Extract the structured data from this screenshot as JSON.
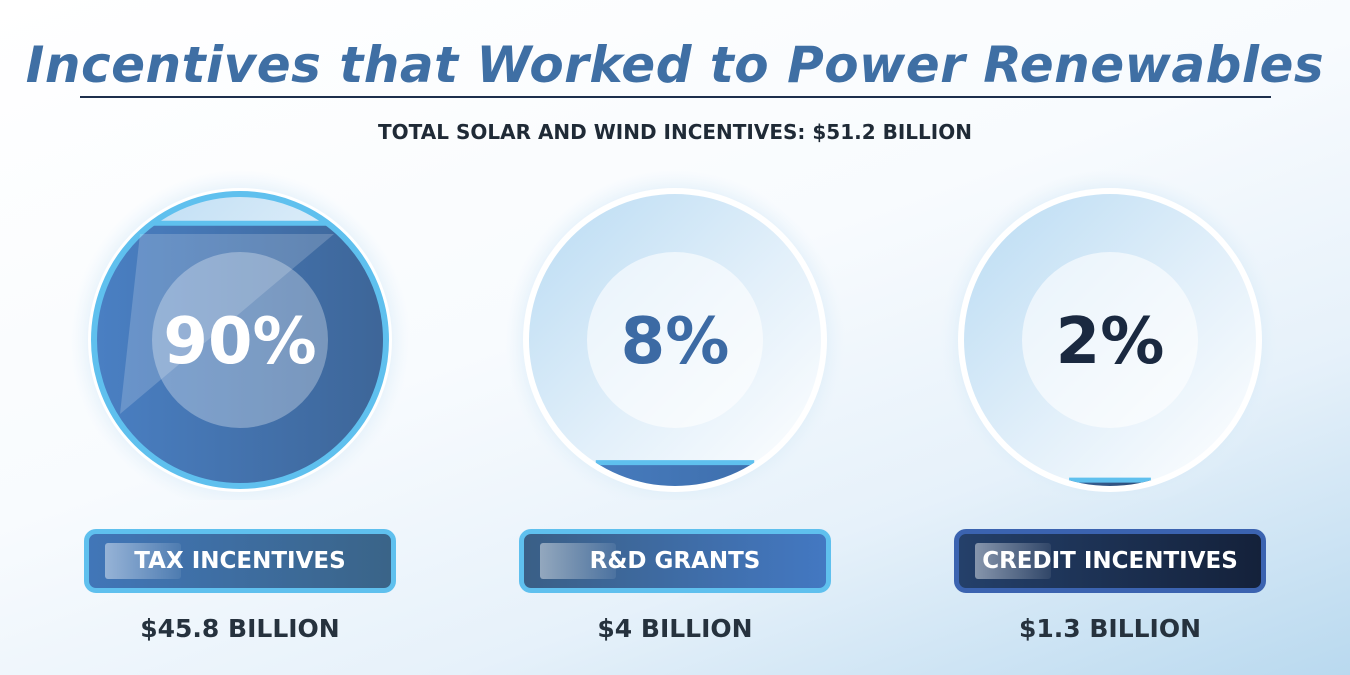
{
  "title": "Incentives that Worked to Power Renewables",
  "subtitle": "TOTAL SOLAR AND WIND INCENTIVES: $51.2 BILLION",
  "colors": {
    "title": "#3f6fa4",
    "ring": "#5fc0ee",
    "tax_fill": "#3d6597",
    "grants_fill": "#3b6aa6",
    "credit_fill": "#1a2a45",
    "dark_text": "#26323e"
  },
  "chart_data": {
    "type": "bar",
    "categories": [
      "TAX INCENTIVES",
      "R&D GRANTS",
      "CREDIT INCENTIVES"
    ],
    "values": [
      90,
      8,
      2
    ],
    "percent_labels": [
      "90%",
      "8%",
      "2%"
    ],
    "amount_labels": [
      "$45.8 BILLION",
      "$4 BILLION",
      "$1.3 BILLION"
    ],
    "amounts_billion": [
      45.8,
      4,
      1.3
    ],
    "total_billion": 51.2,
    "unit": "%",
    "ylim": [
      0,
      100
    ]
  }
}
